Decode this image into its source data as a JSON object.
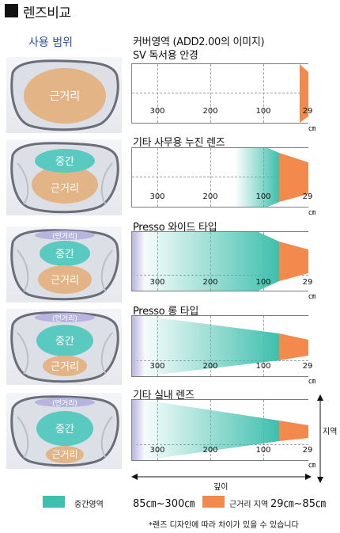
{
  "header": {
    "title": "렌즈비교"
  },
  "column_header": "사용 범위",
  "rows": [
    {
      "title": "커버영역 (ADD2.00의 이미지)",
      "title2": "SV 독서용 안경",
      "lens": {
        "near": "근거리"
      },
      "ticks": [
        "300",
        "200",
        "100",
        "29"
      ]
    },
    {
      "title": "기타 사무용 누진 렌즈",
      "lens": {
        "mid": "중간",
        "near": "근거리"
      },
      "ticks": [
        "300",
        "200",
        "100",
        "29"
      ]
    },
    {
      "title": "Presso 와이드 타입",
      "lens": {
        "far": "(먼거리)",
        "mid": "중간",
        "near": "근거리"
      },
      "ticks": [
        "300",
        "200",
        "100",
        "29"
      ]
    },
    {
      "title": "Presso 롱 타입",
      "lens": {
        "far": "(먼거리)",
        "mid": "중간",
        "near": "근거리"
      },
      "ticks": [
        "300",
        "200",
        "100",
        "29"
      ]
    },
    {
      "title": "기타 실내 렌즈",
      "lens": {
        "far": "(먼거리)",
        "mid": "중간",
        "near": "근거리"
      },
      "ticks": [
        "300",
        "200",
        "100",
        "29"
      ]
    }
  ],
  "unit": "㎝",
  "axis": {
    "depth": "깊이",
    "area": "지역"
  },
  "legend": {
    "mid_label": "중간영역",
    "mid_range": "85㎝~300㎝",
    "near_label": "근거리 지역",
    "near_range": "29㎝~85㎝"
  },
  "footnote": "*렌즈 디자인에 따라 차이가 있을 수 있습니다",
  "colors": {
    "mid": "#3fbfad",
    "near": "#f28a4e",
    "far": "#b8b4e0",
    "title_blue": "#2a4fa8"
  }
}
